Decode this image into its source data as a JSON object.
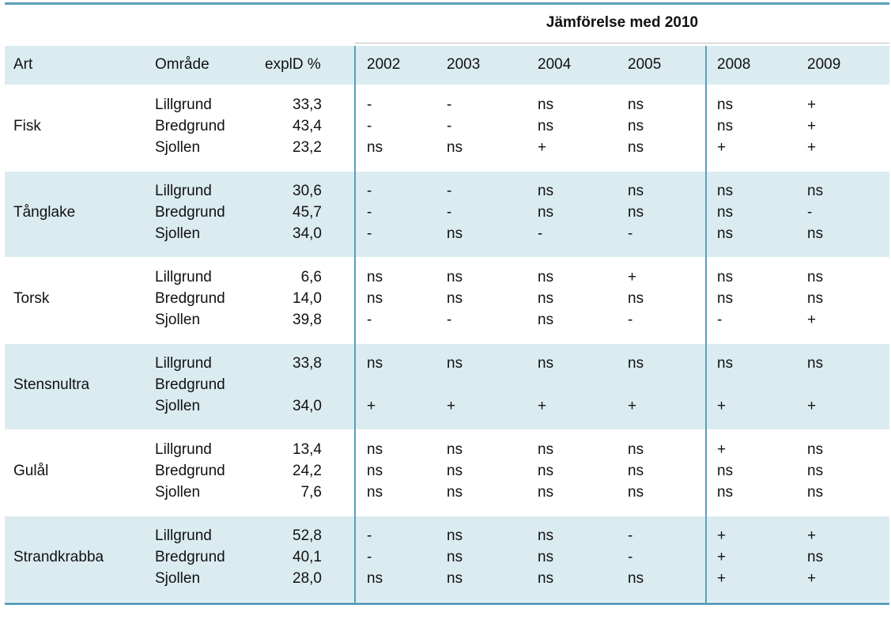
{
  "title": "Jämförelse med 2010",
  "headers": {
    "art": "Art",
    "omrade": "Område",
    "explid": "explD %",
    "years": [
      "2002",
      "2003",
      "2004",
      "2005",
      "2008",
      "2009"
    ]
  },
  "rows": [
    {
      "art": "Fisk",
      "areas": [
        "Lillgrund",
        "Bredgrund",
        "Sjollen"
      ],
      "expl": [
        "33,3",
        "43,4",
        "23,2"
      ],
      "vals": [
        [
          "-",
          "-",
          "ns",
          "ns",
          "ns",
          "+"
        ],
        [
          "-",
          "-",
          "ns",
          "ns",
          "ns",
          "+"
        ],
        [
          "ns",
          "ns",
          "+",
          "ns",
          "+",
          "+"
        ]
      ]
    },
    {
      "art": "Tånglake",
      "areas": [
        "Lillgrund",
        "Bredgrund",
        "Sjollen"
      ],
      "expl": [
        "30,6",
        "45,7",
        "34,0"
      ],
      "vals": [
        [
          "-",
          "-",
          "ns",
          "ns",
          "ns",
          "ns"
        ],
        [
          "-",
          "-",
          "ns",
          "ns",
          "ns",
          "-"
        ],
        [
          "-",
          "ns",
          "-",
          "-",
          "ns",
          "ns"
        ]
      ]
    },
    {
      "art": "Torsk",
      "areas": [
        "Lillgrund",
        "Bredgrund",
        "Sjollen"
      ],
      "expl": [
        "6,6",
        "14,0",
        "39,8"
      ],
      "vals": [
        [
          "ns",
          "ns",
          "ns",
          "+",
          "ns",
          "ns"
        ],
        [
          "ns",
          "ns",
          "ns",
          "ns",
          "ns",
          "ns"
        ],
        [
          "-",
          "-",
          "ns",
          "-",
          "-",
          "+"
        ]
      ]
    },
    {
      "art": "Stensnultra",
      "areas": [
        "Lillgrund",
        "Bredgrund",
        "Sjollen"
      ],
      "expl": [
        "33,8",
        "",
        "34,0"
      ],
      "vals": [
        [
          "ns",
          "ns",
          "ns",
          "ns",
          "ns",
          "ns"
        ],
        [
          "",
          "",
          "",
          "",
          "",
          ""
        ],
        [
          "+",
          "+",
          "+",
          "+",
          "+",
          "+"
        ]
      ]
    },
    {
      "art": "Gulål",
      "areas": [
        "Lillgrund",
        "Bredgrund",
        "Sjollen"
      ],
      "expl": [
        "13,4",
        "24,2",
        "7,6"
      ],
      "vals": [
        [
          "ns",
          "ns",
          "ns",
          "ns",
          "+",
          "ns"
        ],
        [
          "ns",
          "ns",
          "ns",
          "ns",
          "ns",
          "ns"
        ],
        [
          "ns",
          "ns",
          "ns",
          "ns",
          "ns",
          "ns"
        ]
      ]
    },
    {
      "art": "Strandkrabba",
      "areas": [
        "Lillgrund",
        "Bredgrund",
        "Sjollen"
      ],
      "expl": [
        "52,8",
        "40,1",
        "28,0"
      ],
      "vals": [
        [
          "-",
          "ns",
          "ns",
          "-",
          "+",
          "+"
        ],
        [
          "-",
          "ns",
          "ns",
          "-",
          "+",
          "ns"
        ],
        [
          "ns",
          "ns",
          "ns",
          "ns",
          "+",
          "+"
        ]
      ]
    }
  ]
}
